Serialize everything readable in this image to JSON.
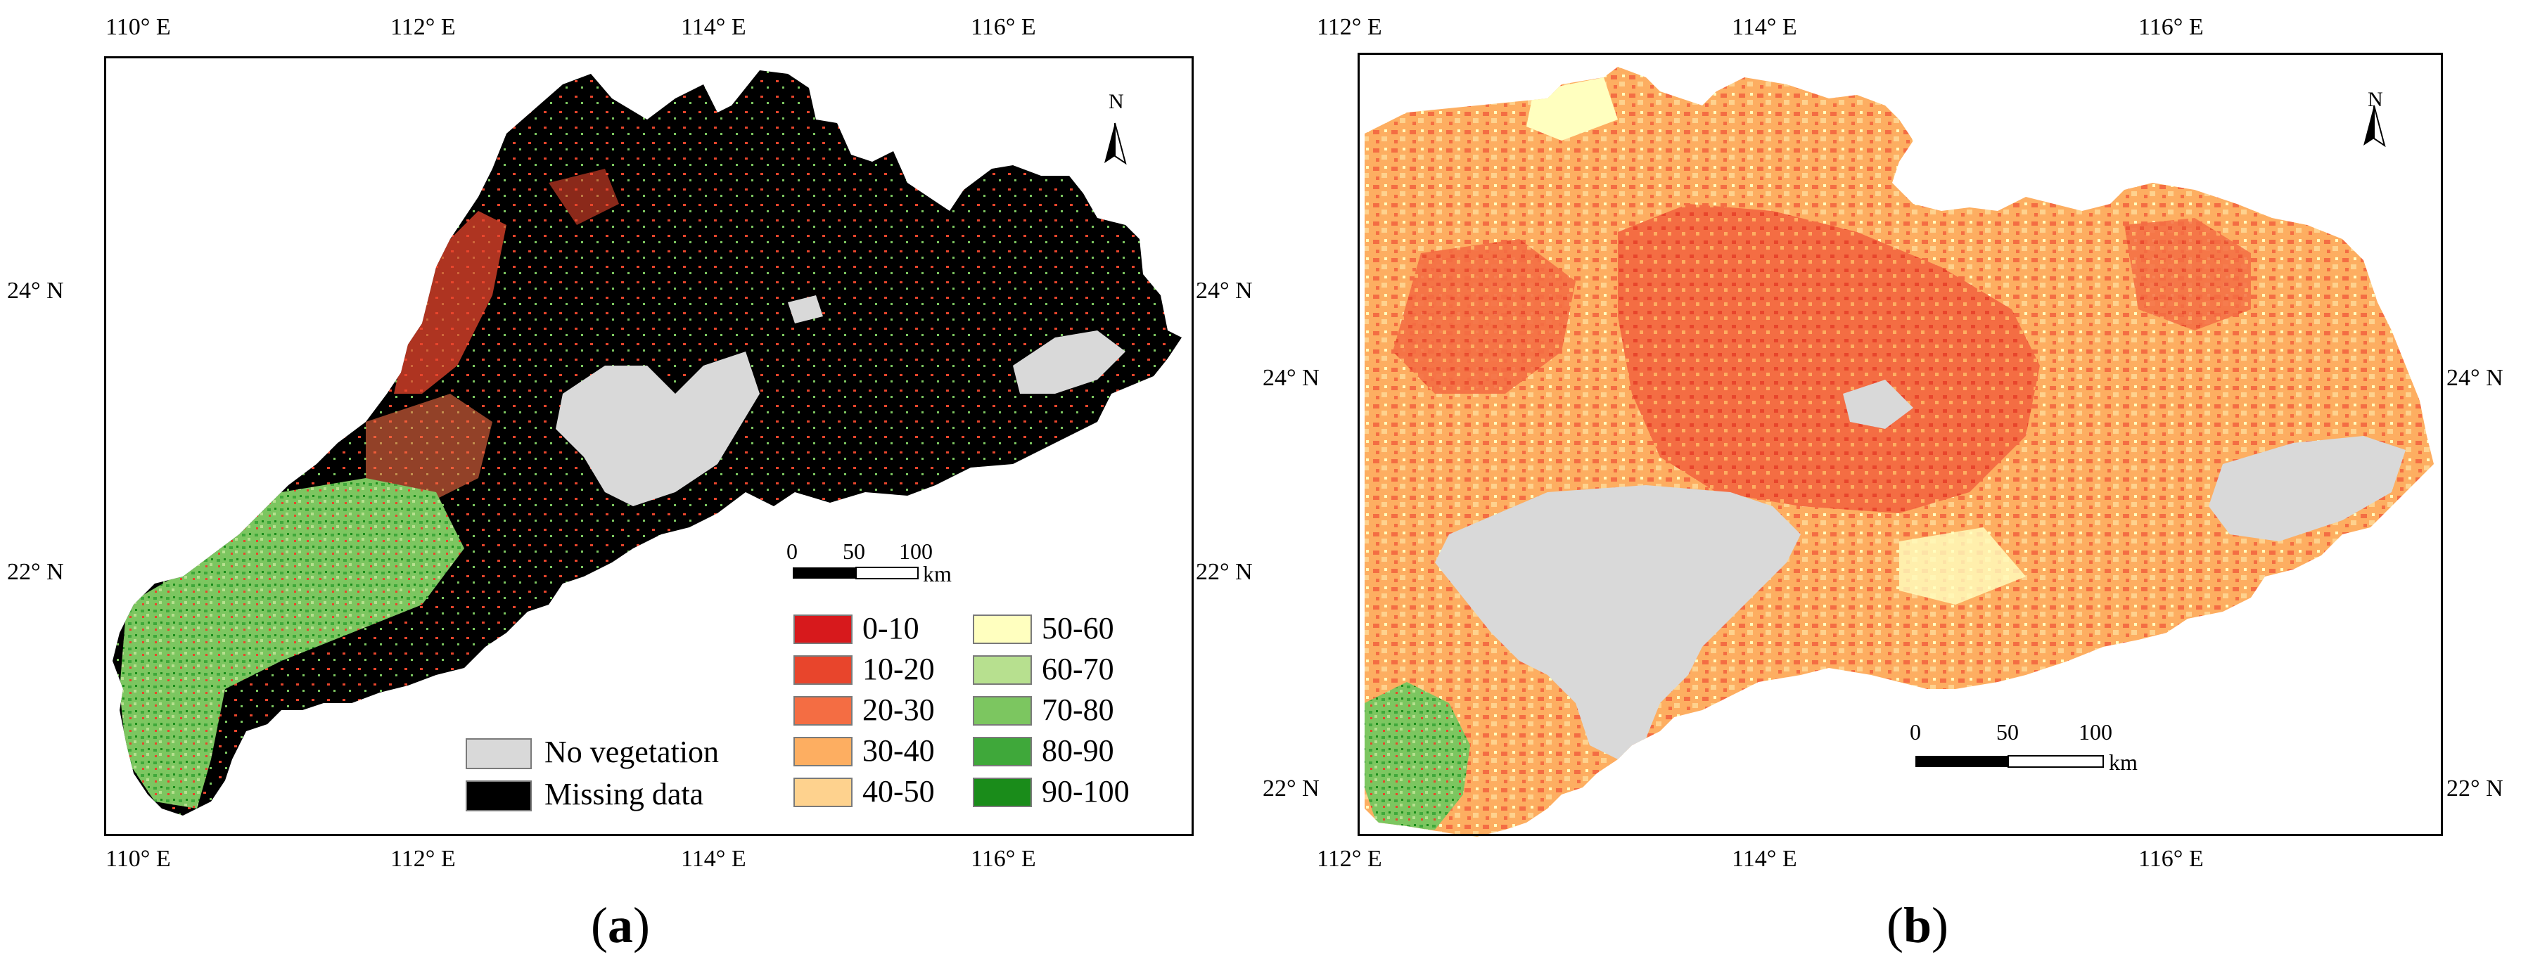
{
  "panel_a": {
    "top_ticks": [
      "110° E",
      "112° E",
      "114° E",
      "116° E"
    ],
    "bottom_ticks": [
      "110° E",
      "112° E",
      "114° E",
      "116° E"
    ],
    "left_ticks": [
      "24° N",
      "22° N"
    ],
    "right_ticks": [
      "24° N",
      "22° N"
    ],
    "north_label": "N",
    "scale_labels": [
      "0",
      "50",
      "100"
    ],
    "scale_unit": "km",
    "legend_classes": [
      {
        "label": "0-10",
        "color": "#d7191c"
      },
      {
        "label": "10-20",
        "color": "#e8452c"
      },
      {
        "label": "20-30",
        "color": "#f46d43"
      },
      {
        "label": "30-40",
        "color": "#fdae61"
      },
      {
        "label": "40-50",
        "color": "#fed28e"
      },
      {
        "label": "50-60",
        "color": "#ffffbf"
      },
      {
        "label": "60-70",
        "color": "#b7e08f"
      },
      {
        "label": "70-80",
        "color": "#7cc660"
      },
      {
        "label": "80-90",
        "color": "#3fa83a"
      },
      {
        "label": "90-100",
        "color": "#1a8c1a"
      }
    ],
    "legend_special": [
      {
        "label": "No vegetation",
        "color": "#d9d9d9"
      },
      {
        "label": "Missing data",
        "color": "#000000"
      }
    ],
    "caption_open": "(",
    "caption_letter": "a",
    "caption_close": ")"
  },
  "panel_b": {
    "top_ticks": [
      "112° E",
      "114° E",
      "116° E"
    ],
    "bottom_ticks": [
      "112° E",
      "114° E",
      "116° E"
    ],
    "left_ticks": [
      "24° N",
      "22° N"
    ],
    "right_ticks": [
      "24° N",
      "22° N"
    ],
    "north_label": "N",
    "scale_labels": [
      "0",
      "50",
      "100"
    ],
    "scale_unit": "km",
    "caption_open": "(",
    "caption_letter": "b",
    "caption_close": ")"
  }
}
